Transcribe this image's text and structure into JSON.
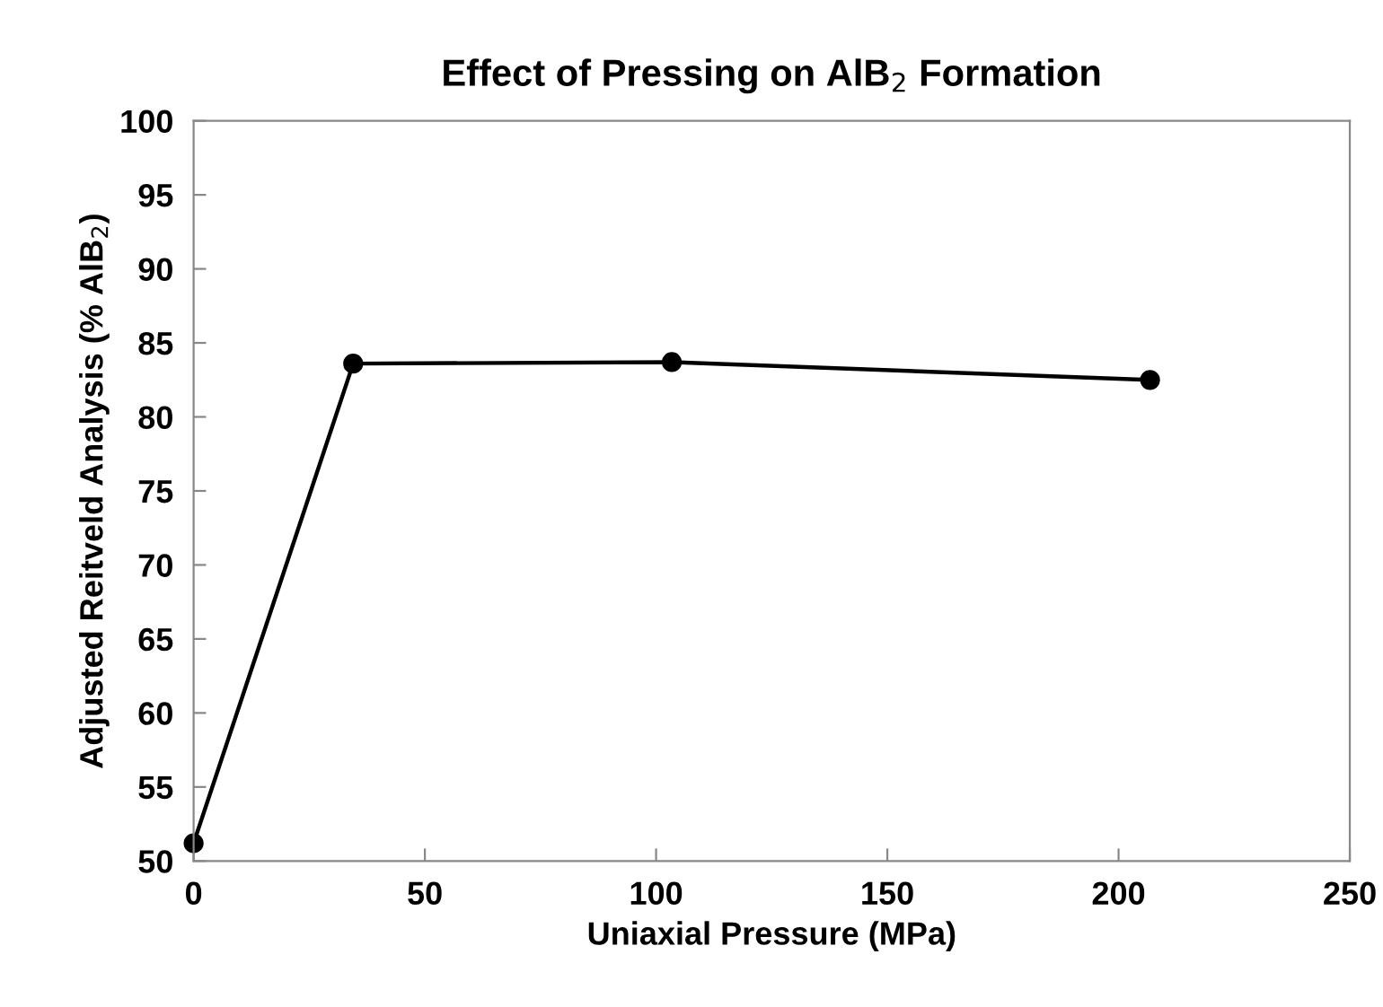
{
  "chart_data": {
    "type": "line",
    "title": "Effect of Pressing on AlB$_{2}$ Formation",
    "xlabel": "Uniaxial Pressure (MPa)",
    "ylabel": "Adjusted Reitveld Analysis (% AlB$_{2}$)",
    "series": [
      {
        "color": "#000000",
        "x": [
          0,
          34.5,
          103.4,
          206.8
        ],
        "values": [
          51.2,
          83.6,
          83.7,
          82.5
        ]
      }
    ],
    "xlim": [
      0,
      250
    ],
    "xticks": [
      0,
      50,
      100,
      150,
      200,
      250
    ],
    "ylim": [
      50,
      100
    ],
    "yticks": [
      50,
      55,
      60,
      65,
      70,
      75,
      80,
      85,
      90,
      95,
      100
    ],
    "grid": false,
    "legend": false,
    "marker": "circle",
    "line_style": "solid"
  }
}
